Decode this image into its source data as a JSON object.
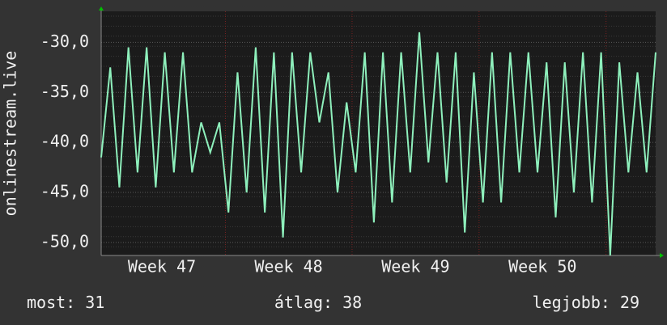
{
  "chart_data": {
    "type": "line",
    "y_label": "onlinestream.live",
    "week_labels": [
      "Week 47",
      "Week 48",
      "Week 49",
      "Week 50"
    ],
    "series": [
      {
        "color": "#8ef0bc",
        "values": [
          -41.5,
          -32.5,
          -44.5,
          -30.5,
          -43,
          -30.5,
          -44.5,
          -31,
          -43,
          -31,
          -43,
          -38,
          -41,
          -38,
          -47,
          -33,
          -45,
          -30.5,
          -47,
          -31,
          -49.5,
          -31,
          -43,
          -31,
          -38,
          -33,
          -45,
          -36,
          -43,
          -31,
          -48,
          -31,
          -46,
          -31,
          -43,
          -29,
          -42,
          -31,
          -44,
          -31,
          -49,
          -33,
          -46,
          -31,
          -46,
          -31,
          -43,
          -31,
          -43,
          -32,
          -47.5,
          -32,
          -45,
          -31,
          -46,
          -31,
          -51.3,
          -32,
          -43,
          -33,
          -43,
          -31
        ]
      }
    ],
    "ylim": [
      -51.3,
      -26.9
    ],
    "yticks": [
      {
        "value": -30,
        "label": "-30,0"
      },
      {
        "value": -35,
        "label": "-35,0"
      },
      {
        "value": -40,
        "label": "-40,0"
      },
      {
        "value": -45,
        "label": "-45,0"
      },
      {
        "value": -50,
        "label": "-50,0"
      }
    ],
    "grid": true,
    "stats": [
      {
        "label": "most:",
        "value": 31
      },
      {
        "label": "átlag:",
        "value": 38
      },
      {
        "label": "legjobb:",
        "value": 29
      }
    ]
  }
}
